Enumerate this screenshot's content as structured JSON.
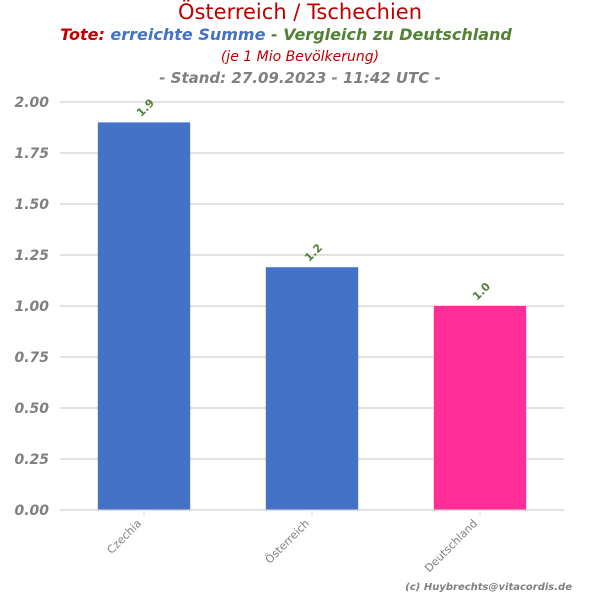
{
  "colors": {
    "title": "#c00000",
    "blue": "#4472c4",
    "green": "#538135",
    "grey": "#808080",
    "pink": "#ff2d96",
    "grid": "#d9d9d9"
  },
  "chart_data": {
    "type": "bar",
    "title": "Österreich / Tschechien",
    "subtitle_parts": [
      "Tote: ",
      "erreichte Summe",
      " - Vergleich zu Deutschland"
    ],
    "subtitle_note": "(je 1 Mio Bevölkerung)",
    "stand": "- Stand: 27.09.2023 - 11:42 UTC -",
    "categories": [
      "Czechia",
      "Österreich",
      "Deutschland"
    ],
    "values": [
      1.9,
      1.19,
      1.0
    ],
    "value_labels": [
      "1.9",
      "1.2",
      "1.0"
    ],
    "bar_colors": [
      "#4472c4",
      "#4472c4",
      "#ff2d96"
    ],
    "ylim": [
      0,
      2.0
    ],
    "yticks": [
      "0.00",
      "0.25",
      "0.50",
      "0.75",
      "1.00",
      "1.25",
      "1.50",
      "1.75",
      "2.00"
    ],
    "grid": true,
    "xlabel": "",
    "ylabel": ""
  },
  "credit": "(c) Huybrechts@vitacordis.de"
}
